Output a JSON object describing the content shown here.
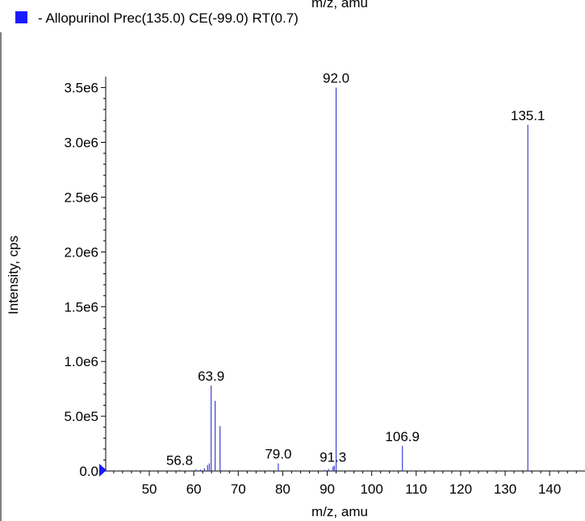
{
  "top_cut_label": "m/z, amu",
  "legend": {
    "swatch_color": "#1a1aff",
    "text": "- Allopurinol Prec(135.0) CE(-99.0) RT(0.7)"
  },
  "colors": {
    "peak": "#3f3fd6",
    "marker": "#1a1aff",
    "axis": "#000000"
  },
  "chart_data": {
    "type": "bar",
    "title": "",
    "xlabel": "m/z, amu",
    "ylabel": "Intensity, cps",
    "xlim": [
      40.2,
      146.5
    ],
    "ylim": [
      0,
      3600000
    ],
    "xticks": [
      50,
      60,
      70,
      80,
      90,
      100,
      110,
      120,
      130,
      140
    ],
    "yticks": [
      {
        "value": 0,
        "label": "0.0"
      },
      {
        "value": 500000,
        "label": "5.0e5"
      },
      {
        "value": 1000000,
        "label": "1.0e6"
      },
      {
        "value": 1500000,
        "label": "1.5e6"
      },
      {
        "value": 2000000,
        "label": "2.0e6"
      },
      {
        "value": 2500000,
        "label": "2.5e6"
      },
      {
        "value": 3000000,
        "label": "3.0e6"
      },
      {
        "value": 3500000,
        "label": "3.5e6"
      }
    ],
    "grid": false,
    "series": [
      {
        "peaks": [
          {
            "mz": 56.8,
            "intensity": 10000,
            "label": "56.8"
          },
          {
            "mz": 60.5,
            "intensity": 15000
          },
          {
            "mz": 61.5,
            "intensity": 12000
          },
          {
            "mz": 62.4,
            "intensity": 25000
          },
          {
            "mz": 63.1,
            "intensity": 55000
          },
          {
            "mz": 63.5,
            "intensity": 70000
          },
          {
            "mz": 63.9,
            "intensity": 780000,
            "label": "63.9"
          },
          {
            "mz": 64.8,
            "intensity": 640000
          },
          {
            "mz": 65.9,
            "intensity": 410000
          },
          {
            "mz": 79.0,
            "intensity": 70000,
            "label": "79.0"
          },
          {
            "mz": 89.5,
            "intensity": 10000
          },
          {
            "mz": 90.3,
            "intensity": 18000
          },
          {
            "mz": 91.3,
            "intensity": 40000,
            "label": "91.3"
          },
          {
            "mz": 91.6,
            "intensity": 50000
          },
          {
            "mz": 92.0,
            "intensity": 3500000,
            "label": "92.0"
          },
          {
            "mz": 106.9,
            "intensity": 230000,
            "label": "106.9"
          },
          {
            "mz": 133.8,
            "intensity": 8000
          },
          {
            "mz": 135.1,
            "intensity": 3160000,
            "label": "135.1"
          }
        ]
      }
    ]
  }
}
